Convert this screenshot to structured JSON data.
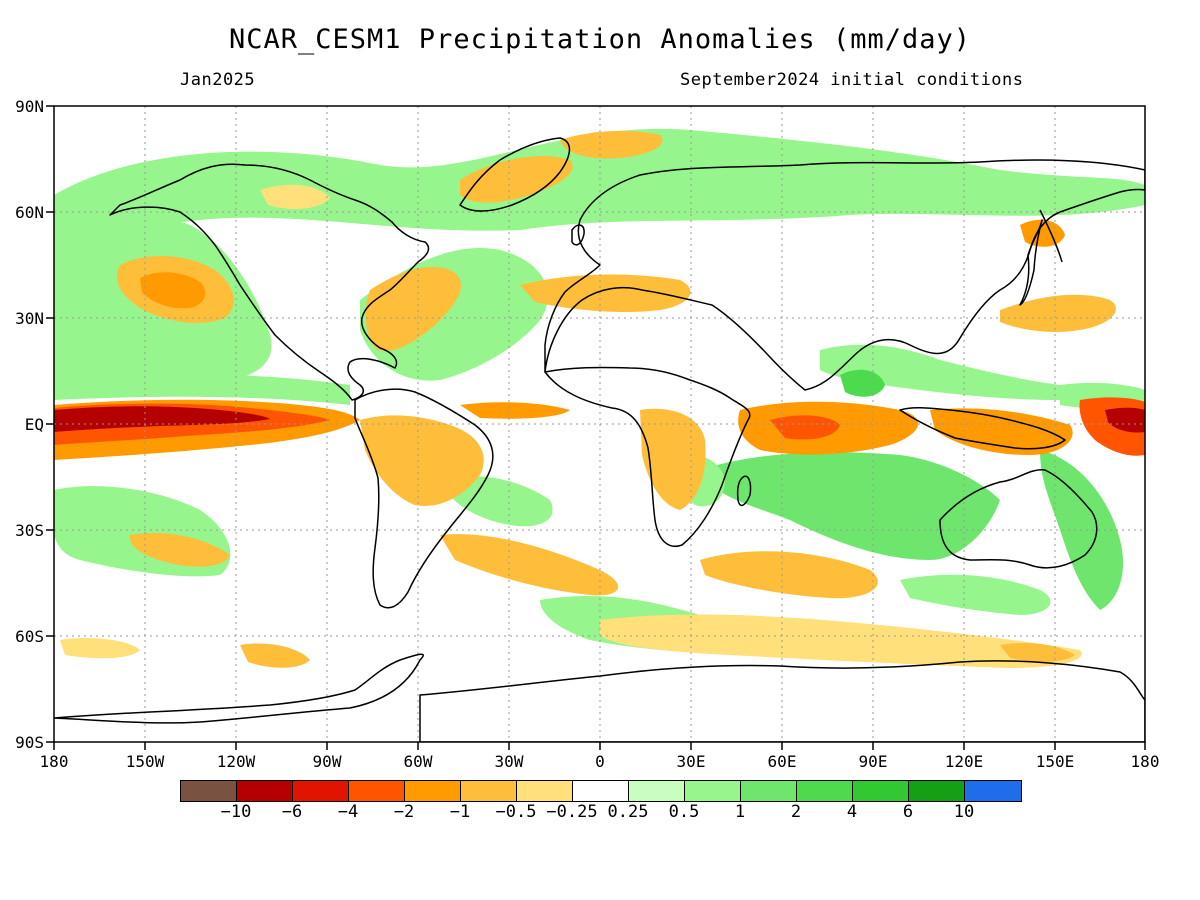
{
  "title": "NCAR_CESM1 Precipitation Anomalies (mm/day)",
  "subtitle_left": "Jan2025",
  "subtitle_right": "September2024 initial conditions",
  "lat_ticks": [
    "90N",
    "60N",
    "30N",
    "EQ",
    "30S",
    "60S",
    "90S"
  ],
  "lon_ticks": [
    "180",
    "150W",
    "120W",
    "90W",
    "60W",
    "30W",
    "0",
    "30E",
    "60E",
    "90E",
    "120E",
    "150E",
    "180"
  ],
  "colorbar": {
    "colors": [
      "#7a5242",
      "#b40000",
      "#e01400",
      "#ff5500",
      "#ff9a00",
      "#ffbe3a",
      "#ffe07a",
      "#ffffff",
      "#c8ffbe",
      "#96f58c",
      "#6ee66e",
      "#4ddb4d",
      "#32c832",
      "#14a014",
      "#1e6eeb"
    ],
    "labels": [
      "−10",
      "−6",
      "−4",
      "−2",
      "−1",
      "−0.5",
      "−0.25",
      "0.25",
      "0.5",
      "1",
      "2",
      "4",
      "6",
      "10"
    ]
  },
  "colors": {
    "heavy_dry": "#b40000",
    "dry": "#ff5500",
    "moderate_dry": "#ff9a00",
    "light_dry": "#ffbe3a",
    "very_light_dry": "#ffe07a",
    "very_light_wet": "#c8ffbe",
    "light_wet": "#96f58c",
    "moderate_wet": "#6ee66e",
    "wet": "#4ddb4d",
    "heavy_wet": "#14a014",
    "coast": "#000000",
    "grid": "#999999"
  }
}
